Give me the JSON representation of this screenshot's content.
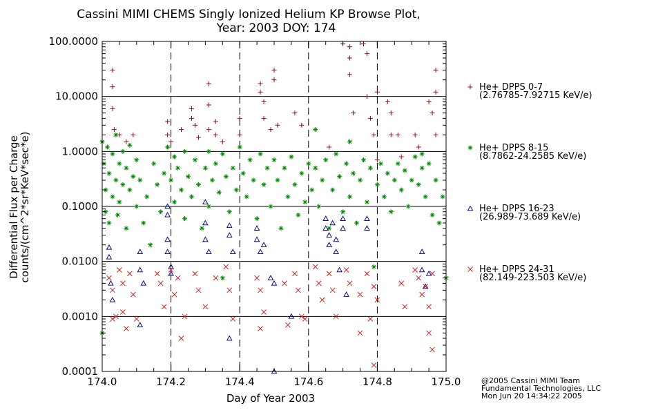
{
  "chart_data": {
    "type": "scatter",
    "title": "Cassini MIMI CHEMS Singly Ionized Helium KP Browse Plot,",
    "subtitle": "Year: 2003 DOY: 174",
    "xlabel": "Day of Year 2003",
    "ylabel": "Differential Flux per Charge",
    "ylabel2": "counts/(cm^2*sr*KeV*sec*e)",
    "xlim": [
      174.0,
      175.0
    ],
    "ylim": [
      0.0001,
      100.0
    ],
    "yscale": "log",
    "xticks": [
      174.0,
      174.2,
      174.4,
      174.6,
      174.8,
      175.0
    ],
    "xtick_labels": [
      "174.0",
      "174.2",
      "174.4",
      "174.6",
      "174.8",
      "175.0"
    ],
    "yticks": [
      100,
      10,
      1,
      0.1,
      0.01,
      0.001,
      0.0001
    ],
    "ytick_labels": [
      "100.0000",
      "10.0000",
      "1.0000",
      "0.1000",
      "0.0100",
      "0.0010",
      "0.0001"
    ],
    "vertical_dashed_lines": [
      174.2,
      174.4,
      174.6,
      174.8
    ],
    "horizontal_grid": true,
    "legend_placement": "right",
    "series": [
      {
        "name": "He+ DPPS 0-7",
        "range": "(2.76785-7.92715 KeV/e)",
        "marker": "plus",
        "color": "#8b0b0b",
        "points": [
          [
            174.03,
            30
          ],
          [
            174.03,
            15
          ],
          [
            174.03,
            6
          ],
          [
            174.035,
            2.5
          ],
          [
            174.05,
            2
          ],
          [
            174.07,
            1.5
          ],
          [
            174.09,
            2
          ],
          [
            174.19,
            3.5
          ],
          [
            174.19,
            2
          ],
          [
            174.2,
            1.5
          ],
          [
            174.23,
            2.5
          ],
          [
            174.26,
            6
          ],
          [
            174.26,
            4
          ],
          [
            174.27,
            3
          ],
          [
            174.28,
            1.8
          ],
          [
            174.31,
            17
          ],
          [
            174.31,
            7
          ],
          [
            174.31,
            2.5
          ],
          [
            174.33,
            3.5
          ],
          [
            174.33,
            2
          ],
          [
            174.35,
            1.5
          ],
          [
            174.4,
            4
          ],
          [
            174.4,
            2
          ],
          [
            174.46,
            17
          ],
          [
            174.46,
            12
          ],
          [
            174.47,
            8
          ],
          [
            174.47,
            4
          ],
          [
            174.49,
            2.5
          ],
          [
            174.5,
            30
          ],
          [
            174.5,
            20
          ],
          [
            174.51,
            3
          ],
          [
            174.56,
            5
          ],
          [
            174.58,
            3
          ],
          [
            174.66,
            1.2
          ],
          [
            174.7,
            90
          ],
          [
            174.72,
            80
          ],
          [
            174.72,
            50
          ],
          [
            174.72,
            25
          ],
          [
            174.73,
            5
          ],
          [
            174.76,
            90
          ],
          [
            174.77,
            60
          ],
          [
            174.77,
            10
          ],
          [
            174.78,
            4
          ],
          [
            174.79,
            2
          ],
          [
            174.8,
            12
          ],
          [
            174.8,
            0.7
          ],
          [
            174.83,
            8
          ],
          [
            174.84,
            5
          ],
          [
            174.84,
            2
          ],
          [
            174.86,
            2
          ],
          [
            174.87,
            0.8
          ],
          [
            174.91,
            2
          ],
          [
            174.92,
            1.2
          ],
          [
            174.95,
            8
          ],
          [
            174.96,
            5
          ],
          [
            174.97,
            30
          ],
          [
            174.97,
            12
          ],
          [
            174.97,
            2
          ]
        ]
      },
      {
        "name": "He+ DPPS 8-15",
        "range": "(8.7862-24.2585 KeV/e)",
        "marker": "asterisk",
        "color": "#008a00",
        "points": [
          [
            174.0,
            0.0005
          ],
          [
            174.0,
            1.5
          ],
          [
            174.005,
            0.6
          ],
          [
            174.01,
            0.2
          ],
          [
            174.01,
            0.08
          ],
          [
            174.015,
            1.2
          ],
          [
            174.02,
            0.4
          ],
          [
            174.02,
            0.05
          ],
          [
            174.03,
            0.9
          ],
          [
            174.03,
            0.15
          ],
          [
            174.04,
            2.0
          ],
          [
            174.04,
            0.3
          ],
          [
            174.045,
            0.07
          ],
          [
            174.05,
            0.6
          ],
          [
            174.05,
            0.12
          ],
          [
            174.06,
            1.0
          ],
          [
            174.06,
            0.25
          ],
          [
            174.07,
            0.5
          ],
          [
            174.07,
            0.04
          ],
          [
            174.08,
            1.3
          ],
          [
            174.08,
            0.2
          ],
          [
            174.09,
            0.35
          ],
          [
            174.1,
            0.7
          ],
          [
            174.1,
            0.1
          ],
          [
            174.11,
            0.3
          ],
          [
            174.12,
            0.05
          ],
          [
            174.13,
            0.15
          ],
          [
            174.14,
            0.02
          ],
          [
            174.15,
            0.6
          ],
          [
            174.16,
            0.25
          ],
          [
            174.17,
            0.08
          ],
          [
            174.18,
            0.4
          ],
          [
            174.19,
            1.2
          ],
          [
            174.2,
            0.3
          ],
          [
            174.21,
            0.8
          ],
          [
            174.21,
            0.12
          ],
          [
            174.22,
            0.5
          ],
          [
            174.23,
            0.2
          ],
          [
            174.24,
            1.0
          ],
          [
            174.24,
            0.06
          ],
          [
            174.25,
            0.35
          ],
          [
            174.26,
            0.15
          ],
          [
            174.27,
            0.7
          ],
          [
            174.28,
            0.25
          ],
          [
            174.29,
            0.04
          ],
          [
            174.3,
            0.5
          ],
          [
            174.31,
            1.0
          ],
          [
            174.31,
            0.1
          ],
          [
            174.32,
            0.3
          ],
          [
            174.33,
            0.6
          ],
          [
            174.34,
            0.18
          ],
          [
            174.35,
            0.9
          ],
          [
            174.35,
            0.005
          ],
          [
            174.36,
            0.35
          ],
          [
            174.37,
            0.08
          ],
          [
            174.38,
            0.5
          ],
          [
            174.39,
            0.2
          ],
          [
            174.4,
            1.2
          ],
          [
            174.41,
            0.4
          ],
          [
            174.42,
            0.15
          ],
          [
            174.43,
            0.7
          ],
          [
            174.44,
            0.3
          ],
          [
            174.45,
            0.06
          ],
          [
            174.46,
            0.9
          ],
          [
            174.47,
            0.25
          ],
          [
            174.48,
            0.5
          ],
          [
            174.49,
            0.1
          ],
          [
            174.5,
            0.7
          ],
          [
            174.51,
            0.3
          ],
          [
            174.52,
            0.04
          ],
          [
            174.53,
            0.5
          ],
          [
            174.54,
            0.15
          ],
          [
            174.55,
            0.8
          ],
          [
            174.56,
            0.25
          ],
          [
            174.57,
            0.07
          ],
          [
            174.58,
            0.4
          ],
          [
            174.59,
            0.12
          ],
          [
            174.6,
            0.6
          ],
          [
            174.61,
            0.2
          ],
          [
            174.62,
            2.5
          ],
          [
            174.62,
            0.5
          ],
          [
            174.63,
            0.1
          ],
          [
            174.64,
            0.3
          ],
          [
            174.65,
            0.7
          ],
          [
            174.66,
            0.04
          ],
          [
            174.67,
            0.2
          ],
          [
            174.68,
            0.9
          ],
          [
            174.69,
            0.35
          ],
          [
            174.7,
            0.08
          ],
          [
            174.71,
            0.6
          ],
          [
            174.72,
            1.5
          ],
          [
            174.72,
            0.15
          ],
          [
            174.73,
            0.4
          ],
          [
            174.74,
            0.05
          ],
          [
            174.75,
            0.3
          ],
          [
            174.76,
            0.7
          ],
          [
            174.77,
            0.12
          ],
          [
            174.78,
            0.5
          ],
          [
            174.79,
            0.008
          ],
          [
            174.8,
            0.25
          ],
          [
            174.81,
            0.6
          ],
          [
            174.82,
            0.15
          ],
          [
            174.83,
            0.4
          ],
          [
            174.84,
            0.08
          ],
          [
            174.85,
            0.3
          ],
          [
            174.86,
            0.6
          ],
          [
            174.87,
            0.2
          ],
          [
            174.88,
            0.45
          ],
          [
            174.89,
            0.1
          ],
          [
            174.9,
            0.3
          ],
          [
            174.91,
            0.8
          ],
          [
            174.92,
            0.25
          ],
          [
            174.93,
            0.9
          ],
          [
            174.93,
            0.5
          ],
          [
            174.94,
            0.15
          ],
          [
            174.95,
            0.6
          ],
          [
            174.96,
            0.07
          ],
          [
            174.97,
            0.3
          ],
          [
            174.98,
            0.05
          ],
          [
            174.99,
            0.15
          ],
          [
            175.0,
            0.005
          ]
        ]
      },
      {
        "name": "He+ DPPS 16-23",
        "range": "(26.989-73.689 KeV/e)",
        "marker": "triangle",
        "color": "#0a0a8a",
        "points": [
          [
            174.02,
            0.018
          ],
          [
            174.02,
            0.012
          ],
          [
            174.025,
            0.004
          ],
          [
            174.03,
            0.002
          ],
          [
            174.11,
            0.015
          ],
          [
            174.11,
            0.007
          ],
          [
            174.11,
            0.0007
          ],
          [
            174.12,
            0.004
          ],
          [
            174.19,
            0.1
          ],
          [
            174.19,
            0.07
          ],
          [
            174.19,
            0.025
          ],
          [
            174.19,
            0.015
          ],
          [
            174.2,
            0.008
          ],
          [
            174.2,
            0.006
          ],
          [
            174.3,
            0.12
          ],
          [
            174.3,
            0.05
          ],
          [
            174.3,
            0.025
          ],
          [
            174.31,
            0.015
          ],
          [
            174.37,
            0.045
          ],
          [
            174.37,
            0.03
          ],
          [
            174.37,
            0.0004
          ],
          [
            174.38,
            0.015
          ],
          [
            174.45,
            0.04
          ],
          [
            174.45,
            0.025
          ],
          [
            174.46,
            0.015
          ],
          [
            174.47,
            0.02
          ],
          [
            174.49,
            0.005
          ],
          [
            174.5,
            0.004
          ],
          [
            174.5,
            0.0001
          ],
          [
            174.55,
            0.001
          ],
          [
            174.65,
            0.06
          ],
          [
            174.65,
            0.04
          ],
          [
            174.66,
            0.03
          ],
          [
            174.66,
            0.02
          ],
          [
            174.67,
            0.05
          ],
          [
            174.68,
            0.025
          ],
          [
            174.68,
            0.015
          ],
          [
            174.69,
            0.007
          ],
          [
            174.7,
            0.06
          ],
          [
            174.7,
            0.04
          ],
          [
            174.71,
            0.0025
          ],
          [
            174.77,
            0.06
          ],
          [
            174.77,
            0.04
          ],
          [
            174.93,
            0.015
          ],
          [
            174.93,
            0.007
          ],
          [
            174.94,
            0.0035
          ],
          [
            174.95,
            0.006
          ]
        ]
      },
      {
        "name": "He+ DPPS 24-31",
        "range": "(82.149-223.503 KeV/e)",
        "marker": "x",
        "color": "#d42020",
        "points": [
          [
            174.02,
            0.005
          ],
          [
            174.03,
            0.003
          ],
          [
            174.03,
            0.0009
          ],
          [
            174.04,
            0.001
          ],
          [
            174.05,
            0.007
          ],
          [
            174.06,
            0.004
          ],
          [
            174.06,
            0.0012
          ],
          [
            174.07,
            0.0006
          ],
          [
            174.08,
            0.006
          ],
          [
            174.09,
            0.0025
          ],
          [
            174.1,
            0.0009
          ],
          [
            174.16,
            0.006
          ],
          [
            174.17,
            0.004
          ],
          [
            174.18,
            0.0015
          ],
          [
            174.2,
            0.007
          ],
          [
            174.21,
            0.0025
          ],
          [
            174.22,
            0.005
          ],
          [
            174.23,
            0.0004
          ],
          [
            174.24,
            0.001
          ],
          [
            174.27,
            0.006
          ],
          [
            174.28,
            0.003
          ],
          [
            174.3,
            0.0015
          ],
          [
            174.33,
            0.005
          ],
          [
            174.36,
            0.008
          ],
          [
            174.37,
            0.003
          ],
          [
            174.38,
            0.0009
          ],
          [
            174.45,
            0.005
          ],
          [
            174.46,
            0.003
          ],
          [
            174.46,
            0.0006
          ],
          [
            174.47,
            0.0012
          ],
          [
            174.53,
            0.004
          ],
          [
            174.54,
            0.0007
          ],
          [
            174.56,
            0.006
          ],
          [
            174.57,
            0.003
          ],
          [
            174.58,
            0.001
          ],
          [
            174.59,
            0.0009
          ],
          [
            174.62,
            0.008
          ],
          [
            174.63,
            0.004
          ],
          [
            174.64,
            0.002
          ],
          [
            174.66,
            0.006
          ],
          [
            174.67,
            0.003
          ],
          [
            174.68,
            0.001
          ],
          [
            174.71,
            0.007
          ],
          [
            174.72,
            0.004
          ],
          [
            174.75,
            0.0025
          ],
          [
            174.75,
            0.0005
          ],
          [
            174.77,
            0.006
          ],
          [
            174.78,
            0.0009
          ],
          [
            174.79,
            0.0035
          ],
          [
            174.79,
            0.00013
          ],
          [
            174.8,
            0.002
          ],
          [
            174.87,
            0.004
          ],
          [
            174.88,
            0.0015
          ],
          [
            174.91,
            0.007
          ],
          [
            174.92,
            0.005
          ],
          [
            174.93,
            0.0025
          ],
          [
            174.94,
            0.0035
          ],
          [
            174.95,
            0.0015
          ],
          [
            174.95,
            0.0005
          ],
          [
            174.96,
            0.00025
          ],
          [
            174.96,
            0.006
          ]
        ]
      }
    ]
  },
  "footer": {
    "line1": "@2005 Cassini MIMI Team",
    "line2": "Fundamental Technologies, LLC",
    "line3": "Mon Jun 20 14:34:22 2005"
  }
}
